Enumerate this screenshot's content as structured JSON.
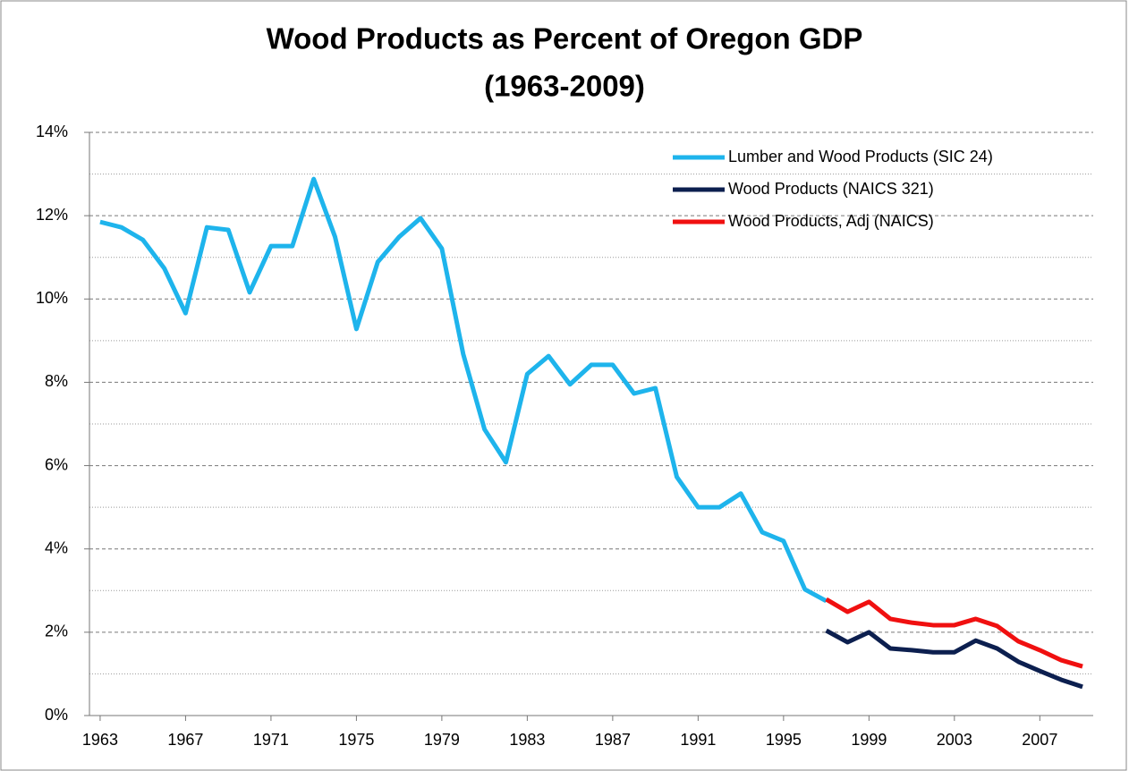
{
  "chart_data": {
    "type": "line",
    "title": [
      "Wood Products as Percent of Oregon GDP",
      "(1963-2009)"
    ],
    "x": [
      1963,
      1964,
      1965,
      1966,
      1967,
      1968,
      1969,
      1970,
      1971,
      1972,
      1973,
      1974,
      1975,
      1976,
      1977,
      1978,
      1979,
      1980,
      1981,
      1982,
      1983,
      1984,
      1985,
      1986,
      1987,
      1988,
      1989,
      1990,
      1991,
      1992,
      1993,
      1994,
      1995,
      1996,
      1997,
      1998,
      1999,
      2000,
      2001,
      2002,
      2003,
      2004,
      2005,
      2006,
      2007,
      2008,
      2009
    ],
    "series": [
      {
        "name": "Lumber and Wood Products (SIC 24)",
        "color": "#1eb4ec",
        "values": [
          11.85,
          11.72,
          11.42,
          10.74,
          9.66,
          11.72,
          11.66,
          10.16,
          11.27,
          11.27,
          12.88,
          11.49,
          9.28,
          10.89,
          11.49,
          11.94,
          11.21,
          8.68,
          6.87,
          6.08,
          8.2,
          8.63,
          7.95,
          8.42,
          8.42,
          7.73,
          7.86,
          5.73,
          5.0,
          5.0,
          5.33,
          4.4,
          4.19,
          3.03,
          2.75,
          null,
          null,
          null,
          null,
          null,
          null,
          null,
          null,
          null,
          null,
          null,
          null
        ]
      },
      {
        "name": "Wood Products (NAICS 321)",
        "color": "#0c1f4f",
        "values": [
          null,
          null,
          null,
          null,
          null,
          null,
          null,
          null,
          null,
          null,
          null,
          null,
          null,
          null,
          null,
          null,
          null,
          null,
          null,
          null,
          null,
          null,
          null,
          null,
          null,
          null,
          null,
          null,
          null,
          null,
          null,
          null,
          null,
          null,
          2.04,
          1.76,
          2.0,
          1.61,
          1.57,
          1.52,
          1.52,
          1.8,
          1.61,
          1.29,
          1.07,
          0.86,
          0.69
        ]
      },
      {
        "name": "Wood Products, Adj (NAICS)",
        "color": "#f01010",
        "values": [
          null,
          null,
          null,
          null,
          null,
          null,
          null,
          null,
          null,
          null,
          null,
          null,
          null,
          null,
          null,
          null,
          null,
          null,
          null,
          null,
          null,
          null,
          null,
          null,
          null,
          null,
          null,
          null,
          null,
          null,
          null,
          null,
          null,
          null,
          2.79,
          2.49,
          2.73,
          2.32,
          2.23,
          2.17,
          2.17,
          2.32,
          2.15,
          1.78,
          1.57,
          1.33,
          1.18
        ]
      }
    ],
    "xlim": [
      1962.5,
      2009.5
    ],
    "xticks": [
      1963,
      1967,
      1971,
      1975,
      1979,
      1983,
      1987,
      1991,
      1995,
      1999,
      2003,
      2007
    ],
    "ylim": [
      0,
      14
    ],
    "yticks": [
      {
        "value": 0,
        "label": "0%"
      },
      {
        "value": 2,
        "label": "2%"
      },
      {
        "value": 4,
        "label": "4%"
      },
      {
        "value": 6,
        "label": "6%"
      },
      {
        "value": 8,
        "label": "8%"
      },
      {
        "value": 10,
        "label": "10%"
      },
      {
        "value": 12,
        "label": "12%"
      },
      {
        "value": 14,
        "label": "14%"
      }
    ],
    "minor_yticks": [
      1,
      3,
      5,
      7,
      9,
      11,
      13
    ],
    "grid": true,
    "legend": "upper right"
  }
}
